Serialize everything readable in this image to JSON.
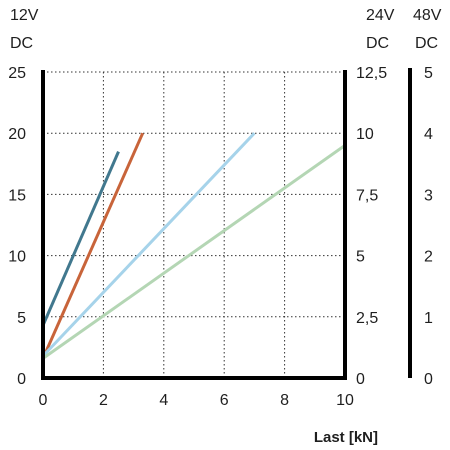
{
  "chart_data": {
    "type": "line",
    "title": "",
    "xlabel": "Last [kN]",
    "xlim": [
      0,
      10
    ],
    "x_ticks": [
      "0",
      "2",
      "4",
      "6",
      "8",
      "10"
    ],
    "grid": true,
    "y_axes": [
      {
        "label": [
          "12V",
          "DC"
        ],
        "ylim": [
          0,
          25
        ],
        "ticks": [
          "0",
          "5",
          "10",
          "15",
          "20",
          "25"
        ],
        "position": "left"
      },
      {
        "label": [
          "24V",
          "DC"
        ],
        "ylim": [
          0,
          12.5
        ],
        "ticks": [
          "0",
          "2,5",
          "5",
          "7,5",
          "10",
          "12,5"
        ],
        "position": "right"
      },
      {
        "label": [
          "48V",
          "DC"
        ],
        "ylim": [
          0,
          5
        ],
        "ticks": [
          "0",
          "1",
          "2",
          "3",
          "4",
          "5"
        ],
        "position": "far-right"
      }
    ],
    "series": [
      {
        "color": "#41788e",
        "x": [
          0,
          2.5
        ],
        "y": [
          4.3,
          18.5
        ]
      },
      {
        "color": "#c8643a",
        "x": [
          0,
          3.3
        ],
        "y": [
          1.6,
          20
        ]
      },
      {
        "color": "#a6d3ea",
        "x": [
          0,
          7
        ],
        "y": [
          1.8,
          20
        ]
      },
      {
        "color": "#b4d6b4",
        "x": [
          0,
          10
        ],
        "y": [
          1.6,
          19
        ]
      }
    ]
  }
}
